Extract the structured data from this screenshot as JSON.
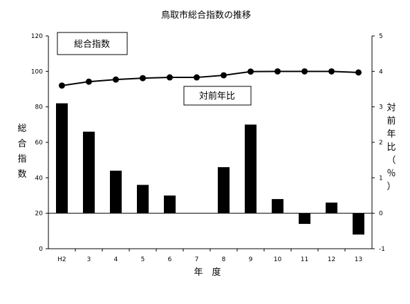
{
  "chart_data": {
    "type": "bar",
    "title": "鳥取市総合指数の推移",
    "xlabel": "年　度",
    "categories": [
      "H2",
      "3",
      "4",
      "5",
      "6",
      "7",
      "8",
      "9",
      "10",
      "11",
      "12",
      "13"
    ],
    "series": [
      {
        "name": "対前年比",
        "type": "bar",
        "axis": "right",
        "unit": "%",
        "values": [
          3.1,
          2.3,
          1.2,
          0.8,
          0.5,
          0.0,
          1.3,
          2.5,
          0.4,
          -0.3,
          0.3,
          -0.6
        ]
      },
      {
        "name": "総合指数",
        "type": "line",
        "axis": "left",
        "values": [
          92.0,
          94.2,
          95.4,
          96.2,
          96.6,
          96.6,
          97.8,
          99.9,
          100.0,
          100.0,
          100.0,
          99.4
        ]
      }
    ],
    "y_left": {
      "label": "総合指数",
      "ylim": [
        0,
        120
      ],
      "ticks": [
        "0",
        "20",
        "40",
        "60",
        "80",
        "100",
        "120"
      ]
    },
    "y_right": {
      "label": "対前年比（％）",
      "ylim": [
        -1,
        5
      ],
      "ticks": [
        "-1",
        "0",
        "1",
        "2",
        "3",
        "4",
        "5"
      ]
    },
    "grid": false,
    "legend": [
      {
        "name": "総合指数",
        "placement": "top-left"
      },
      {
        "name": "対前年比",
        "placement": "center"
      }
    ],
    "colors": {
      "bar": "#000000",
      "line": "#000000",
      "marker": "#000000"
    }
  }
}
